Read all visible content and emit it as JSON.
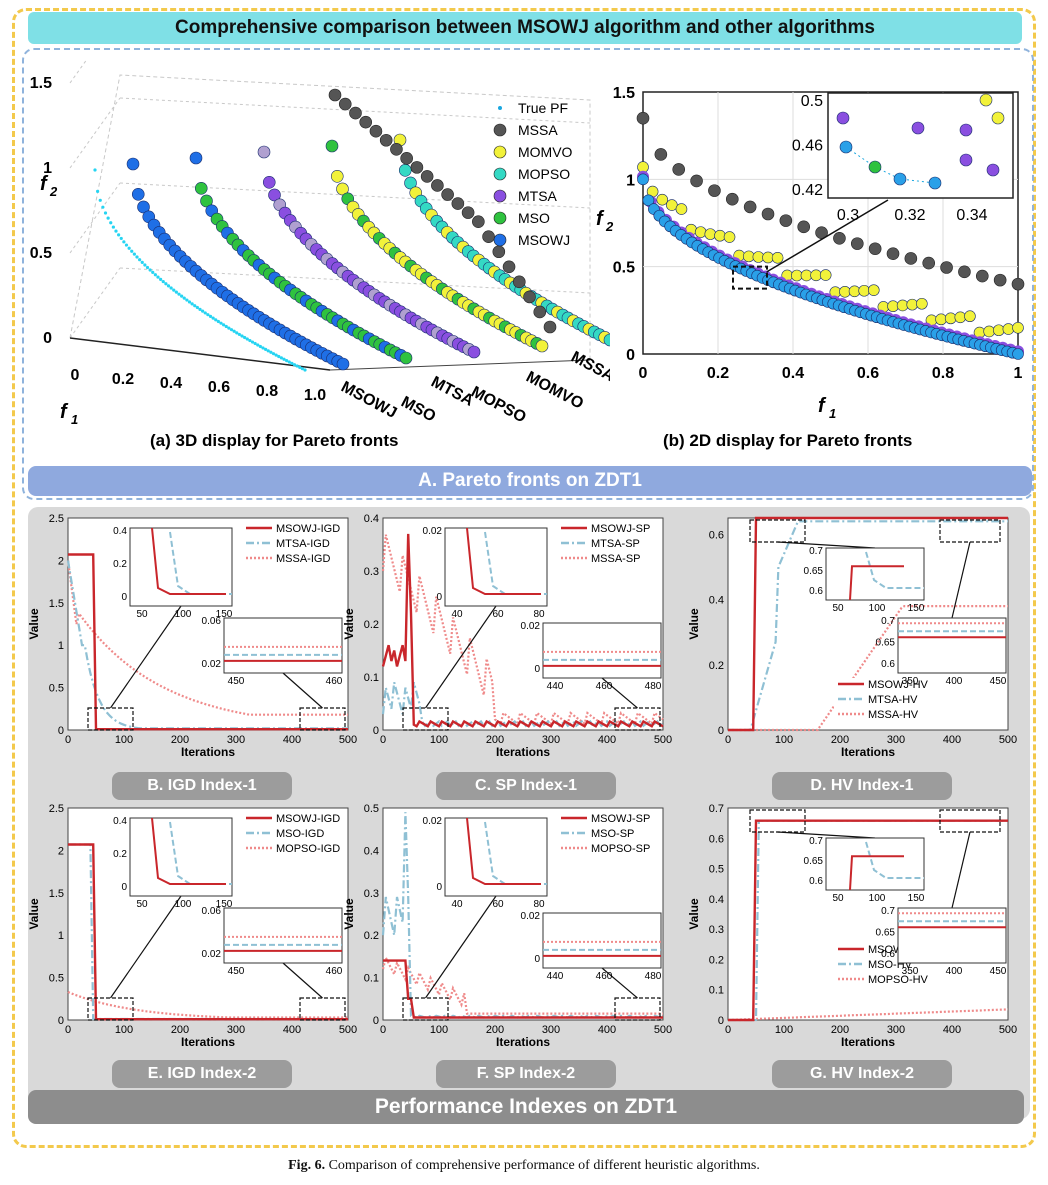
{
  "title": "Comprehensive comparison between MSOWJ algorithm and other algorithms",
  "section_a": "A. Pareto fronts on ZDT1",
  "section_perf": "Performance Indexes on ZDT1",
  "caption_label": "Fig. 6.",
  "caption_text": "Comparison of comprehensive performance of different heuristic algorithms.",
  "colors": {
    "title_bg": "#7fe0e6",
    "band_a": "#8fa9de",
    "band_perf": "#8d8d8d",
    "gold": "#f3c94c",
    "msowj": "#c9262b",
    "blue_dash": "#8fc0d4",
    "pink_dot": "#ef8a8a"
  },
  "chart_data": [
    {
      "type": "scatter",
      "id": "3d",
      "title": "(a) 3D display for Pareto fronts",
      "xlabel": "f",
      "xlabel_sub": "1",
      "ylabel": "f",
      "ylabel_sub": "2",
      "yticks": [
        "0",
        "0.5",
        "1",
        "1.5"
      ],
      "xticks": [
        "0",
        "0.2",
        "0.4",
        "0.6",
        "0.8",
        "1.0"
      ],
      "depth_labels": [
        "MSOWJ",
        "MSO",
        "MTSA",
        "MOPSO",
        "MOMVO",
        "MSSA"
      ],
      "legend": [
        {
          "name": "True PF",
          "color": "#1aa7e0",
          "marker": "dot"
        },
        {
          "name": "MSSA",
          "color": "#555555"
        },
        {
          "name": "MOMVO",
          "color": "#f2f23a"
        },
        {
          "name": "MOPSO",
          "color": "#34d9c4"
        },
        {
          "name": "MTSA",
          "color": "#8a4fe0"
        },
        {
          "name": "MSO",
          "color": "#2fc23f"
        },
        {
          "name": "MSOWJ",
          "color": "#1f6fe6"
        }
      ]
    },
    {
      "type": "scatter",
      "id": "2d",
      "title": "(b) 2D display for Pareto fronts",
      "xlabel": "f",
      "xlabel_sub": "1",
      "ylabel": "f",
      "ylabel_sub": "2",
      "xlim": [
        0,
        1
      ],
      "ylim": [
        0,
        1.5
      ],
      "xticks": [
        "0",
        "0.2",
        "0.4",
        "0.6",
        "0.8",
        "1"
      ],
      "yticks": [
        "0",
        "0.5",
        "1",
        "1.5"
      ],
      "inset_xticks": [
        "0.3",
        "0.32",
        "0.34"
      ],
      "inset_yticks": [
        "0.42",
        "0.46",
        "0.5"
      ]
    },
    {
      "type": "line",
      "id": "B",
      "label": "B. IGD Index-1",
      "ylabel": "Value",
      "xlabel": "Iterations",
      "ylim": [
        0,
        2.5
      ],
      "yticks": [
        "0",
        "0.5",
        "1",
        "1.5",
        "2",
        "2.5"
      ],
      "xticks": [
        "0",
        "100",
        "200",
        "300",
        "400",
        "500"
      ],
      "series": [
        {
          "name": "MSOWJ-IGD"
        },
        {
          "name": "MTSA-IGD"
        },
        {
          "name": "MSSA-IGD"
        }
      ],
      "inset1_xticks": [
        "50",
        "100",
        "150"
      ],
      "inset1_yticks": [
        "0",
        "0.2",
        "0.4"
      ],
      "inset2_xticks": [
        "450",
        "460"
      ],
      "inset2_yticks": [
        "0.02",
        "0.06"
      ]
    },
    {
      "type": "line",
      "id": "C",
      "label": "C. SP Index-1",
      "ylabel": "Value",
      "xlabel": "Iterations",
      "ylim": [
        0,
        0.4
      ],
      "yticks": [
        "0",
        "0.1",
        "0.2",
        "0.3",
        "0.4"
      ],
      "xticks": [
        "0",
        "100",
        "200",
        "300",
        "400",
        "500"
      ],
      "series": [
        {
          "name": "MSOWJ-SP"
        },
        {
          "name": "MTSA-SP"
        },
        {
          "name": "MSSA-SP"
        }
      ],
      "inset1_xticks": [
        "40",
        "60",
        "80"
      ],
      "inset1_yticks": [
        "0",
        "0.02"
      ],
      "inset2_xticks": [
        "440",
        "460",
        "480"
      ],
      "inset2_yticks": [
        "0",
        "0.02"
      ]
    },
    {
      "type": "line",
      "id": "D",
      "label": "D. HV Index-1",
      "ylabel": "Value",
      "xlabel": "Iterations",
      "ylim": [
        0,
        0.65
      ],
      "yticks": [
        "0",
        "0.2",
        "0.4",
        "0.6"
      ],
      "xticks": [
        "0",
        "100",
        "200",
        "300",
        "400",
        "500"
      ],
      "series": [
        {
          "name": "MSOWJ-HV"
        },
        {
          "name": "MTSA-HV"
        },
        {
          "name": "MSSA-HV"
        }
      ],
      "inset1_xticks": [
        "50",
        "100",
        "150"
      ],
      "inset1_yticks": [
        "0.6",
        "0.65",
        "0.7"
      ],
      "inset2_xticks": [
        "350",
        "400",
        "450"
      ],
      "inset2_yticks": [
        "0.6",
        "0.65",
        "0.7"
      ]
    },
    {
      "type": "line",
      "id": "E",
      "label": "E. IGD Index-2",
      "ylabel": "Value",
      "xlabel": "Iterations",
      "ylim": [
        0,
        2.5
      ],
      "yticks": [
        "0",
        "0.5",
        "1",
        "1.5",
        "2",
        "2.5"
      ],
      "xticks": [
        "0",
        "100",
        "200",
        "300",
        "400",
        "500"
      ],
      "series": [
        {
          "name": "MSOWJ-IGD"
        },
        {
          "name": "MSO-IGD"
        },
        {
          "name": "MOPSO-IGD"
        }
      ],
      "inset1_xticks": [
        "50",
        "100",
        "150"
      ],
      "inset1_yticks": [
        "0",
        "0.2",
        "0.4"
      ],
      "inset2_xticks": [
        "450",
        "460"
      ],
      "inset2_yticks": [
        "0.02",
        "0.06"
      ]
    },
    {
      "type": "line",
      "id": "F",
      "label": "F. SP Index-2",
      "ylabel": "Value",
      "xlabel": "Iterations",
      "ylim": [
        0,
        0.5
      ],
      "yticks": [
        "0",
        "0.1",
        "0.2",
        "0.3",
        "0.4",
        "0.5"
      ],
      "xticks": [
        "0",
        "100",
        "200",
        "300",
        "400",
        "500"
      ],
      "series": [
        {
          "name": "MSOWJ-SP"
        },
        {
          "name": "MSO-SP"
        },
        {
          "name": "MOPSO-SP"
        }
      ],
      "inset1_xticks": [
        "40",
        "60",
        "80"
      ],
      "inset1_yticks": [
        "0",
        "0.02"
      ],
      "inset2_xticks": [
        "440",
        "460",
        "480"
      ],
      "inset2_yticks": [
        "0",
        "0.02"
      ]
    },
    {
      "type": "line",
      "id": "G",
      "label": "G. HV Index-2",
      "ylabel": "Value",
      "xlabel": "Iterations",
      "ylim": [
        0,
        0.7
      ],
      "yticks": [
        "0",
        "0.1",
        "0.2",
        "0.3",
        "0.4",
        "0.5",
        "0.6",
        "0.7"
      ],
      "xticks": [
        "0",
        "100",
        "200",
        "300",
        "400",
        "500"
      ],
      "series": [
        {
          "name": "MSOWJ-HV"
        },
        {
          "name": "MSO-HV"
        },
        {
          "name": "MOPSO-HV"
        }
      ],
      "inset1_xticks": [
        "50",
        "100",
        "150"
      ],
      "inset1_yticks": [
        "0.6",
        "0.65",
        "0.7"
      ],
      "inset2_xticks": [
        "350",
        "400",
        "450"
      ],
      "inset2_yticks": [
        "0.6",
        "0.65",
        "0.7"
      ]
    }
  ]
}
